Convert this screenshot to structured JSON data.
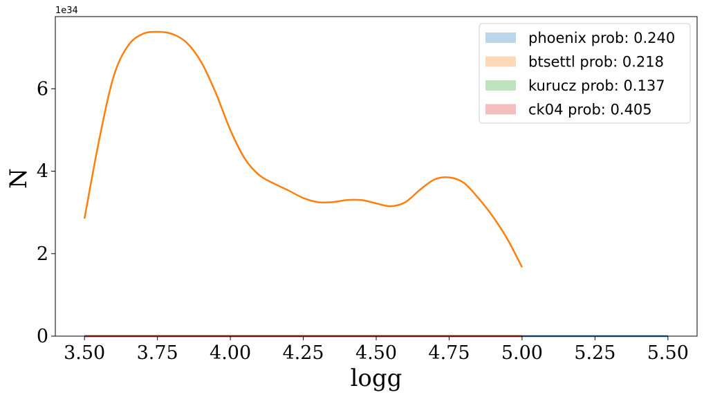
{
  "chart_data": {
    "type": "line",
    "xlabel": "logg",
    "ylabel": "N",
    "y_offset_text": "1e34",
    "xlim": [
      3.4,
      5.6
    ],
    "ylim": [
      0,
      7.75
    ],
    "y_scale_factor": "1e34",
    "x_ticks": [
      3.5,
      3.75,
      4.0,
      4.25,
      4.5,
      4.75,
      5.0,
      5.25,
      5.5
    ],
    "x_tick_labels": [
      "3.50",
      "3.75",
      "4.00",
      "4.25",
      "4.50",
      "4.75",
      "5.00",
      "5.25",
      "5.50"
    ],
    "y_ticks": [
      0,
      2,
      4,
      6
    ],
    "y_tick_labels": [
      "0",
      "2",
      "4",
      "6"
    ],
    "grid": false,
    "legend_placement": "top-right",
    "series": [
      {
        "name": "phoenix prob: 0.240",
        "color": "#1f77b4",
        "x": [
          3.5,
          4.0,
          4.5,
          5.0,
          5.5
        ],
        "y": [
          0,
          0,
          0,
          0,
          0
        ]
      },
      {
        "name": "btsettl prob: 0.218",
        "color": "#ff7f0e",
        "x": [
          3.5,
          3.55,
          3.6,
          3.65,
          3.7,
          3.75,
          3.8,
          3.85,
          3.9,
          3.95,
          4.0,
          4.05,
          4.1,
          4.15,
          4.2,
          4.25,
          4.3,
          4.35,
          4.4,
          4.45,
          4.5,
          4.55,
          4.6,
          4.65,
          4.7,
          4.75,
          4.8,
          4.85,
          4.9,
          4.95,
          5.0
        ],
        "y": [
          2.85,
          4.75,
          6.3,
          7.05,
          7.33,
          7.38,
          7.33,
          7.12,
          6.65,
          5.9,
          5.0,
          4.3,
          3.9,
          3.7,
          3.53,
          3.35,
          3.25,
          3.25,
          3.3,
          3.3,
          3.22,
          3.15,
          3.25,
          3.55,
          3.8,
          3.85,
          3.72,
          3.35,
          2.9,
          2.35,
          1.67
        ]
      },
      {
        "name": "kurucz prob: 0.137",
        "color": "#2ca02c",
        "x": [
          3.5,
          4.0,
          4.5,
          5.0
        ],
        "y": [
          0,
          0,
          0,
          0
        ]
      },
      {
        "name": "ck04 prob: 0.405",
        "color": "#d62728",
        "x": [
          3.5,
          4.0,
          4.5,
          5.0
        ],
        "y": [
          0,
          0,
          0,
          0
        ]
      }
    ],
    "legend": [
      {
        "label": "phoenix prob: 0.240",
        "color": "#1f77b4"
      },
      {
        "label": "btsettl prob: 0.218",
        "color": "#ff7f0e"
      },
      {
        "label": "kurucz prob: 0.137",
        "color": "#2ca02c"
      },
      {
        "label": "ck04 prob: 0.405",
        "color": "#d62728"
      }
    ]
  }
}
